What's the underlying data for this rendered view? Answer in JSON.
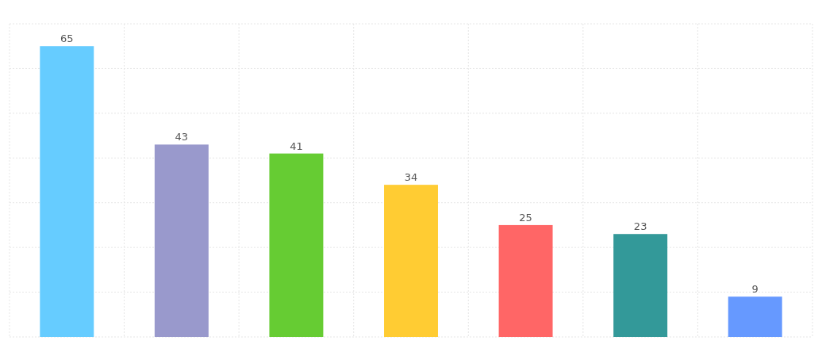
{
  "chart_data": {
    "type": "bar",
    "categories": [
      null,
      null,
      null,
      null,
      null,
      null,
      null
    ],
    "values": [
      65,
      43,
      41,
      34,
      25,
      23,
      9
    ],
    "colors": [
      "#66ccff",
      "#9999cc",
      "#66cc33",
      "#ffcc33",
      "#ff6666",
      "#339999",
      "#6699ff"
    ],
    "ylim": [
      0,
      70
    ],
    "yticks": [
      {
        "value": 0,
        "label": null
      },
      {
        "value": 10,
        "label": null
      },
      {
        "value": 20,
        "label": null
      },
      {
        "value": 30,
        "label": null
      },
      {
        "value": 40,
        "label": null
      },
      {
        "value": 50,
        "label": null
      },
      {
        "value": 60,
        "label": null
      },
      {
        "value": 70,
        "label": null
      }
    ],
    "grid": true,
    "data_labels": true
  }
}
